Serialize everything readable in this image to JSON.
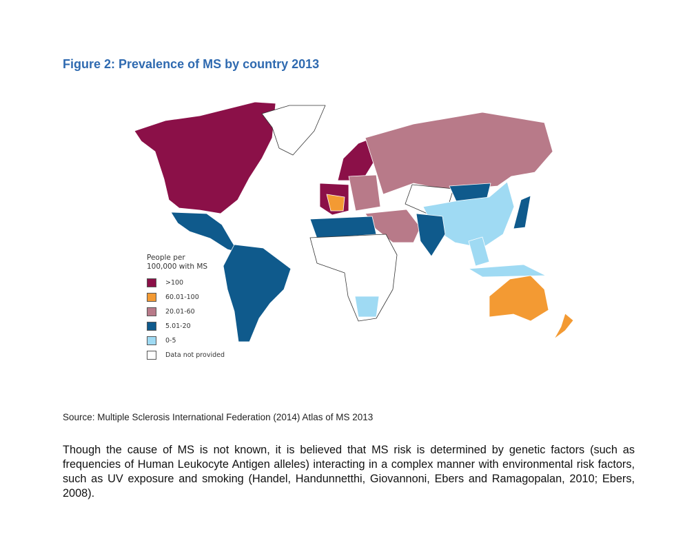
{
  "figure": {
    "title": "Figure 2: Prevalence of MS by country 2013",
    "legend": {
      "title_line1": "People per",
      "title_line2": "100,000 with MS",
      "items": [
        {
          "key": "gt100",
          "label": ">100",
          "color": "#8b1048"
        },
        {
          "key": "60to100",
          "label": "60.01-100",
          "color": "#f39a33"
        },
        {
          "key": "20to60",
          "label": "20.01-60",
          "color": "#b87a89"
        },
        {
          "key": "5to20",
          "label": "5.01-20",
          "color": "#0f5a8c"
        },
        {
          "key": "0to5",
          "label": "0-5",
          "color": "#9fdaf3"
        },
        {
          "key": "none",
          "label": "Data not provided",
          "color": "#ffffff"
        }
      ]
    },
    "regions": [
      {
        "name": "north-america",
        "category": "gt100"
      },
      {
        "name": "greenland",
        "category": "none"
      },
      {
        "name": "mexico-central-america",
        "category": "5to20"
      },
      {
        "name": "south-america",
        "category": "5to20"
      },
      {
        "name": "scandinavia",
        "category": "gt100"
      },
      {
        "name": "western-europe",
        "category": "gt100"
      },
      {
        "name": "france",
        "category": "60to100"
      },
      {
        "name": "eastern-europe",
        "category": "20to60"
      },
      {
        "name": "russia",
        "category": "20to60"
      },
      {
        "name": "central-asia",
        "category": "none"
      },
      {
        "name": "mongolia",
        "category": "5to20"
      },
      {
        "name": "china",
        "category": "0to5"
      },
      {
        "name": "japan",
        "category": "5to20"
      },
      {
        "name": "middle-east",
        "category": "20to60"
      },
      {
        "name": "india",
        "category": "5to20"
      },
      {
        "name": "southeast-asia",
        "category": "0to5"
      },
      {
        "name": "indonesia",
        "category": "0to5"
      },
      {
        "name": "north-africa",
        "category": "5to20"
      },
      {
        "name": "central-africa",
        "category": "none"
      },
      {
        "name": "southern-africa",
        "category": "0to5"
      },
      {
        "name": "australia",
        "category": "60to100"
      },
      {
        "name": "new-zealand",
        "category": "60to100"
      }
    ]
  },
  "source": "Source: Multiple Sclerosis International Federation (2014) Atlas of MS 2013",
  "paragraph": "Though the cause of MS is not known, it is believed that MS risk is determined by genetic factors (such as frequencies of Human Leukocyte Antigen alleles) interacting in a complex manner with environmental risk factors, such as UV exposure and smoking (Handel, Handunnetthi, Giovannoni, Ebers and Ramagopalan, 2010; Ebers, 2008)."
}
